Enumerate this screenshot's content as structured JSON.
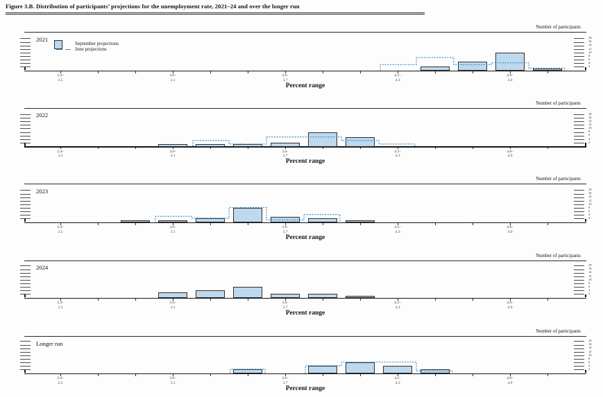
{
  "title": "Figure 3.B. Distribution of participants’ projections for the unemployment rate, 2021–24 and over the longer run",
  "legend": {
    "september": "September projections",
    "june": "June projections"
  },
  "y_axis": {
    "title": "Number of participants",
    "ticks": [
      2,
      4,
      6,
      8,
      10,
      12,
      14,
      16,
      18
    ]
  },
  "x_axis": {
    "title": "Percent range",
    "labeled_ticks": [
      {
        "top": "2.4–",
        "bottom": "2.5"
      },
      {
        "top": "3.0–",
        "bottom": "3.1"
      },
      {
        "top": "3.6–",
        "bottom": "3.7"
      },
      {
        "top": "4.2–",
        "bottom": "4.3"
      },
      {
        "top": "4.8–",
        "bottom": "4.9"
      }
    ]
  },
  "colors": {
    "bar_fill": "#bed8ee",
    "bar_border": "#2e2e2e",
    "june_line": "#3f93c6",
    "axis": "#141414"
  },
  "chart_data": [
    {
      "type": "bar",
      "title": "2021",
      "xlabel": "Percent range",
      "ylabel": "Number of participants",
      "ylim": [
        0,
        18
      ],
      "bin_width": 0.2,
      "series": [
        {
          "name": "September projections",
          "bins": [
            {
              "range": "4.4–4.5",
              "start": 4.4,
              "count": 2
            },
            {
              "range": "4.6–4.7",
              "start": 4.6,
              "count": 5
            },
            {
              "range": "4.8–4.9",
              "start": 4.8,
              "count": 10
            },
            {
              "range": "5.0–5.1",
              "start": 5.0,
              "count": 1
            }
          ]
        },
        {
          "name": "June projections",
          "bins": [
            {
              "range": "4.2–4.3",
              "start": 4.2,
              "count": 3
            },
            {
              "range": "4.4–4.5",
              "start": 4.4,
              "count": 7
            },
            {
              "range": "4.6–4.7",
              "start": 4.6,
              "count": 3
            },
            {
              "range": "4.8–4.9",
              "start": 4.8,
              "count": 4
            },
            {
              "range": "5.0–5.1",
              "start": 5.0,
              "count": 1
            }
          ]
        }
      ]
    },
    {
      "type": "bar",
      "title": "2022",
      "xlabel": "Percent range",
      "ylabel": "Number of participants",
      "ylim": [
        0,
        18
      ],
      "bin_width": 0.2,
      "series": [
        {
          "name": "September projections",
          "bins": [
            {
              "range": "3.0–3.1",
              "start": 3.0,
              "count": 1
            },
            {
              "range": "3.2–3.3",
              "start": 3.2,
              "count": 1
            },
            {
              "range": "3.4–3.5",
              "start": 3.4,
              "count": 1
            },
            {
              "range": "3.6–3.7",
              "start": 3.6,
              "count": 2
            },
            {
              "range": "3.8–3.9",
              "start": 3.8,
              "count": 8
            },
            {
              "range": "4.0–4.1",
              "start": 4.0,
              "count": 5
            }
          ]
        },
        {
          "name": "June projections",
          "bins": [
            {
              "range": "3.2–3.3",
              "start": 3.2,
              "count": 3
            },
            {
              "range": "3.4–3.5",
              "start": 3.4,
              "count": 1
            },
            {
              "range": "3.6–3.7",
              "start": 3.6,
              "count": 5
            },
            {
              "range": "3.8–3.9",
              "start": 3.8,
              "count": 5
            },
            {
              "range": "4.0–4.1",
              "start": 4.0,
              "count": 3
            },
            {
              "range": "4.2–4.3",
              "start": 4.2,
              "count": 1
            }
          ]
        }
      ]
    },
    {
      "type": "bar",
      "title": "2023",
      "xlabel": "Percent range",
      "ylabel": "Number of participants",
      "ylim": [
        0,
        18
      ],
      "bin_width": 0.2,
      "series": [
        {
          "name": "September projections",
          "bins": [
            {
              "range": "2.8–2.9",
              "start": 2.8,
              "count": 1
            },
            {
              "range": "3.0–3.1",
              "start": 3.0,
              "count": 1
            },
            {
              "range": "3.2–3.3",
              "start": 3.2,
              "count": 2
            },
            {
              "range": "3.4–3.5",
              "start": 3.4,
              "count": 8
            },
            {
              "range": "3.6–3.7",
              "start": 3.6,
              "count": 3
            },
            {
              "range": "3.8–3.9",
              "start": 3.8,
              "count": 2
            },
            {
              "range": "4.0–4.1",
              "start": 4.0,
              "count": 1
            }
          ]
        },
        {
          "name": "June projections",
          "bins": [
            {
              "range": "3.0–3.1",
              "start": 3.0,
              "count": 3
            },
            {
              "range": "3.2–3.3",
              "start": 3.2,
              "count": 2
            },
            {
              "range": "3.4–3.5",
              "start": 3.4,
              "count": 8
            },
            {
              "range": "3.6–3.7",
              "start": 3.6,
              "count": 1
            },
            {
              "range": "3.8–3.9",
              "start": 3.8,
              "count": 4
            }
          ]
        }
      ]
    },
    {
      "type": "bar",
      "title": "2024",
      "xlabel": "Percent range",
      "ylabel": "Number of participants",
      "ylim": [
        0,
        18
      ],
      "bin_width": 0.2,
      "series": [
        {
          "name": "September projections",
          "bins": [
            {
              "range": "3.0–3.1",
              "start": 3.0,
              "count": 3
            },
            {
              "range": "3.2–3.3",
              "start": 3.2,
              "count": 4
            },
            {
              "range": "3.4–3.5",
              "start": 3.4,
              "count": 6
            },
            {
              "range": "3.6–3.7",
              "start": 3.6,
              "count": 2
            },
            {
              "range": "3.8–3.9",
              "start": 3.8,
              "count": 2
            },
            {
              "range": "4.0–4.1",
              "start": 4.0,
              "count": 1
            }
          ]
        },
        {
          "name": "June projections",
          "bins": []
        }
      ]
    },
    {
      "type": "bar",
      "title": "Longer run",
      "xlabel": "Percent range",
      "ylabel": "Number of participants",
      "ylim": [
        0,
        18
      ],
      "bin_width": 0.2,
      "series": [
        {
          "name": "September projections",
          "bins": [
            {
              "range": "3.4–3.5",
              "start": 3.4,
              "count": 2
            },
            {
              "range": "3.8–3.9",
              "start": 3.8,
              "count": 4
            },
            {
              "range": "4.0–4.1",
              "start": 4.0,
              "count": 6
            },
            {
              "range": "4.2–4.3",
              "start": 4.2,
              "count": 4
            },
            {
              "range": "4.4–4.5",
              "start": 4.4,
              "count": 2
            }
          ]
        },
        {
          "name": "June projections",
          "bins": [
            {
              "range": "3.4–3.5",
              "start": 3.4,
              "count": 2
            },
            {
              "range": "3.8–3.9",
              "start": 3.8,
              "count": 4
            },
            {
              "range": "4.0–4.1",
              "start": 4.0,
              "count": 6
            },
            {
              "range": "4.2–4.3",
              "start": 4.2,
              "count": 6
            },
            {
              "range": "4.4–4.5",
              "start": 4.4,
              "count": 1
            }
          ]
        }
      ]
    }
  ]
}
